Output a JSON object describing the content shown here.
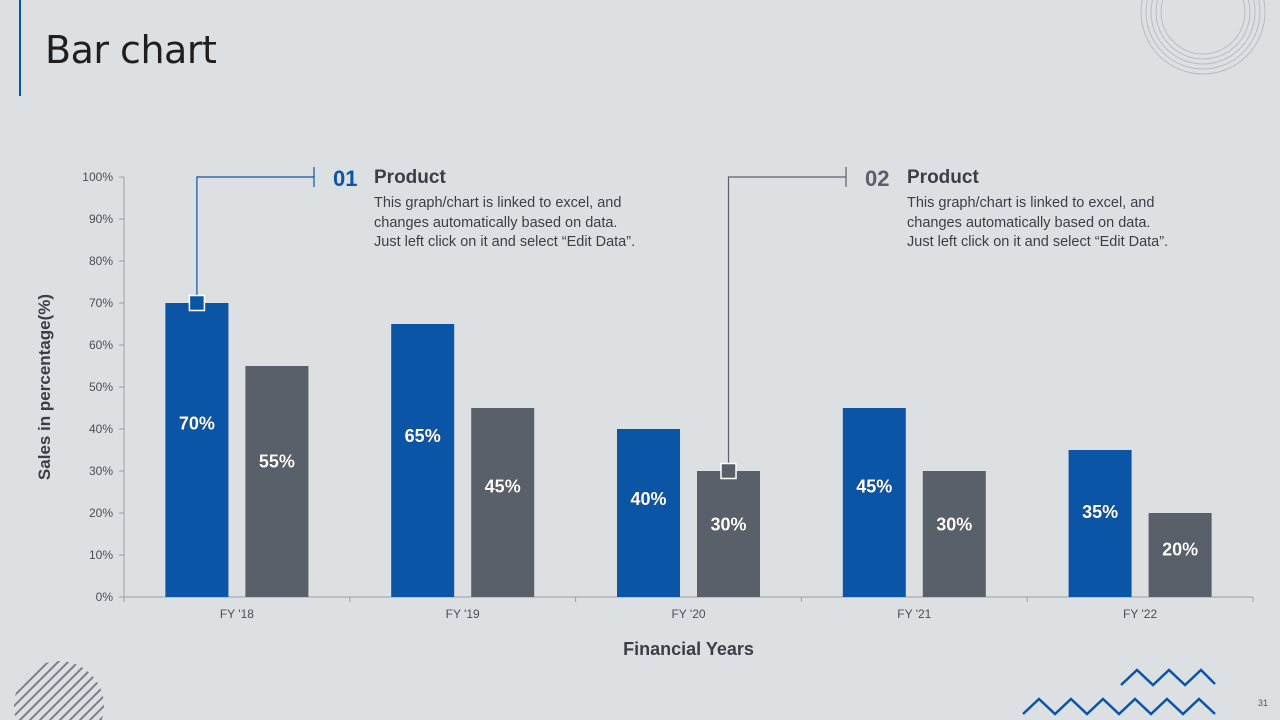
{
  "slide": {
    "title": "Bar chart",
    "number": "31"
  },
  "colors": {
    "series1": "#0b55a6",
    "series2": "#5a6069",
    "background": "#dde0e3",
    "axis": "#9aa0a6"
  },
  "callouts": [
    {
      "number": "01",
      "heading": "Product",
      "body_lines": [
        "This graph/chart is linked to excel, and",
        "changes automatically based on data.",
        "Just left click on it and select “Edit Data”."
      ],
      "number_color": "#0b55a6"
    },
    {
      "number": "02",
      "heading": "Product",
      "body_lines": [
        "This graph/chart is linked to excel, and",
        "changes automatically based on data.",
        "Just left click on it and select “Edit Data”."
      ],
      "number_color": "#5a6069"
    }
  ],
  "chart_data": {
    "type": "bar",
    "categories": [
      "FY '18",
      "FY '19",
      "FY '20",
      "FY '21",
      "FY '22"
    ],
    "series": [
      {
        "values": [
          70,
          65,
          40,
          45,
          35
        ],
        "color": "#0b55a6",
        "labels": [
          "70%",
          "65%",
          "40%",
          "45%",
          "35%"
        ]
      },
      {
        "values": [
          55,
          45,
          30,
          30,
          20
        ],
        "color": "#5a6069",
        "labels": [
          "55%",
          "45%",
          "30%",
          "30%",
          "20%"
        ]
      }
    ],
    "xlabel": "Financial Years",
    "ylabel": "Sales in percentage(%)",
    "ylim": [
      0,
      100
    ],
    "yticks": [
      "0%",
      "10%",
      "20%",
      "30%",
      "40%",
      "50%",
      "60%",
      "70%",
      "80%",
      "90%",
      "100%"
    ],
    "grid": false,
    "legend": "none"
  }
}
